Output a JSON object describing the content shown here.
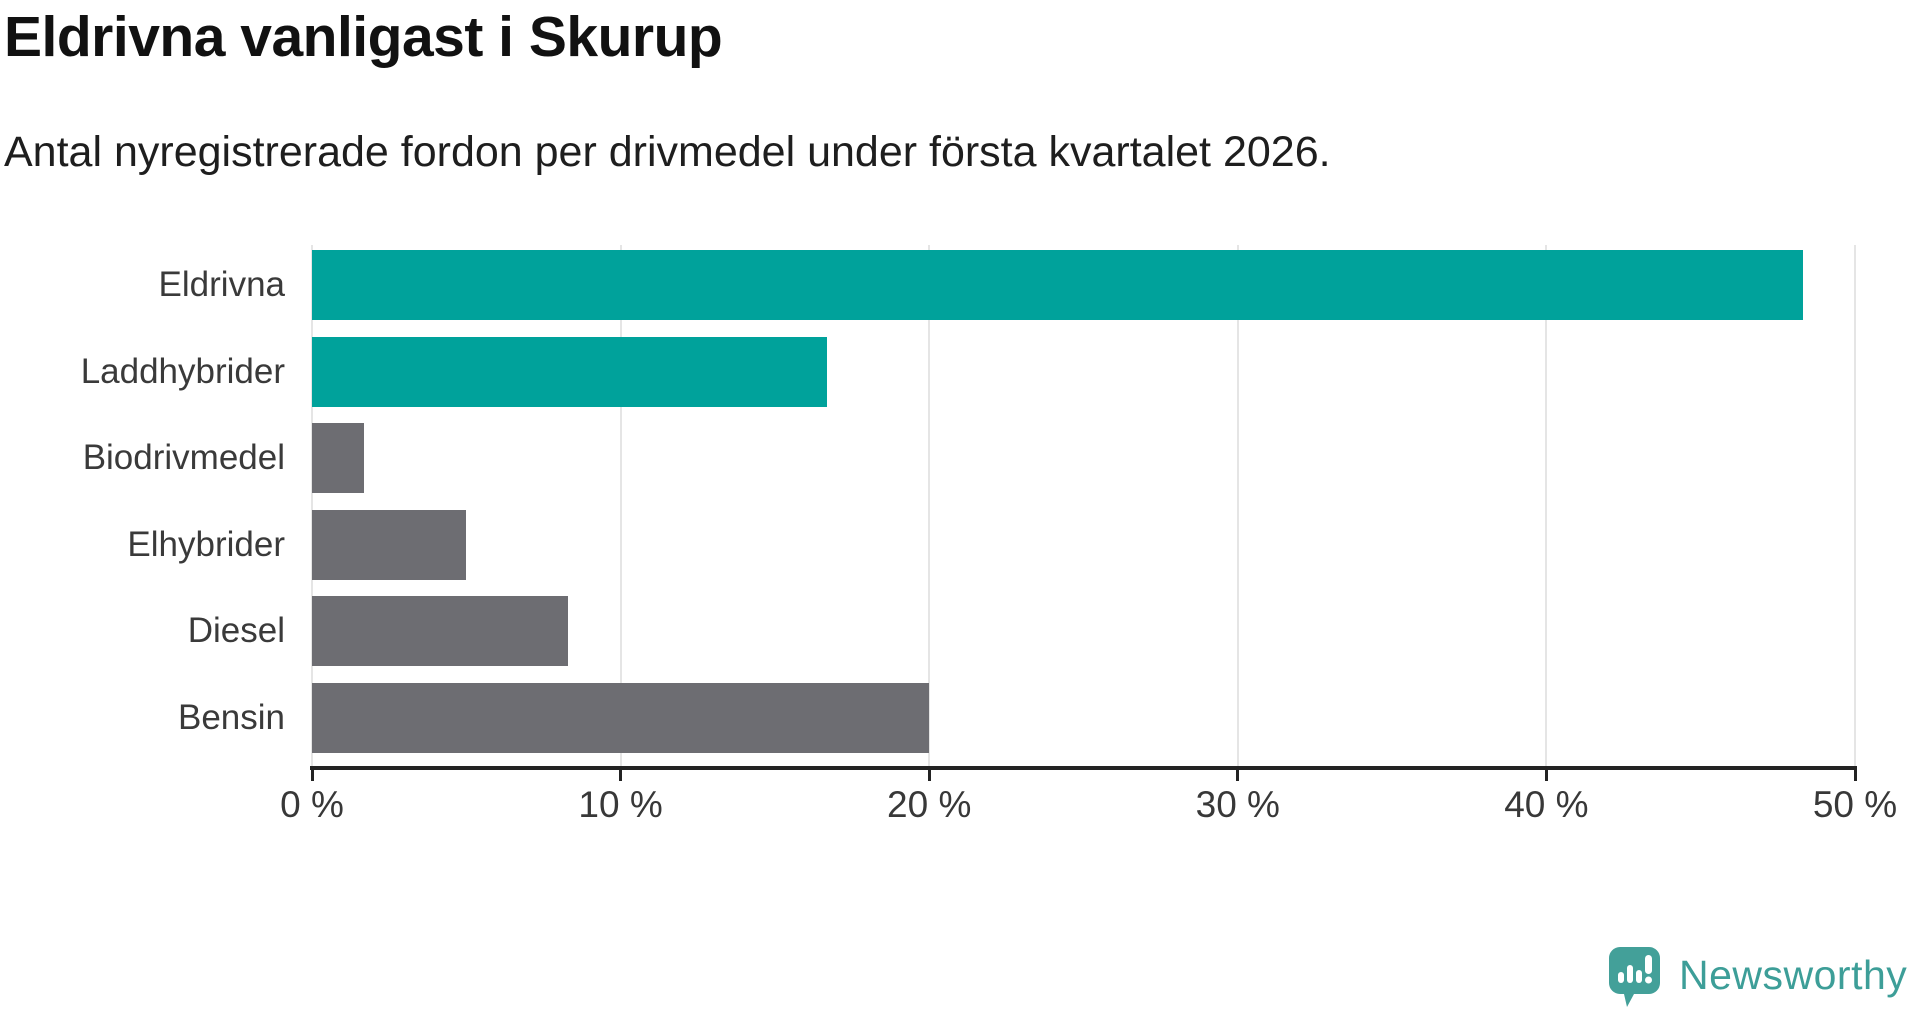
{
  "header": {
    "title": "Eldrivna vanligast i Skurup",
    "subtitle": "Antal nyregistrerade fordon per drivmedel under första kvartalet 2026."
  },
  "chart_data": {
    "type": "bar",
    "orientation": "horizontal",
    "title": "Eldrivna vanligast i Skurup",
    "subtitle": "Antal nyregistrerade fordon per drivmedel under första kvartalet 2026.",
    "categories": [
      "Eldrivna",
      "Laddhybrider",
      "Biodrivmedel",
      "Elhybrider",
      "Diesel",
      "Bensin"
    ],
    "values": [
      48.3,
      16.7,
      1.7,
      5.0,
      8.3,
      20.0
    ],
    "unit": "%",
    "bar_colors": [
      "#00a29b",
      "#00a29b",
      "#6d6d72",
      "#6d6d72",
      "#6d6d72",
      "#6d6d72"
    ],
    "xlim": [
      0,
      50
    ],
    "x_tick_values": [
      0,
      10,
      20,
      30,
      40,
      50
    ],
    "x_tick_labels": [
      "0 %",
      "10 %",
      "20 %",
      "30 %",
      "40 %",
      "50 %"
    ],
    "grid": true,
    "legend": false,
    "xlabel": "",
    "ylabel": ""
  },
  "footer": {
    "brand": "Newsworthy"
  },
  "colors": {
    "accent_teal": "#00a29b",
    "neutral_gray": "#6d6d72",
    "brand_teal": "#43a099",
    "grid": "#e5e5e5",
    "axis": "#232323",
    "title_text": "#111111",
    "label_text": "#3a3a3a"
  }
}
